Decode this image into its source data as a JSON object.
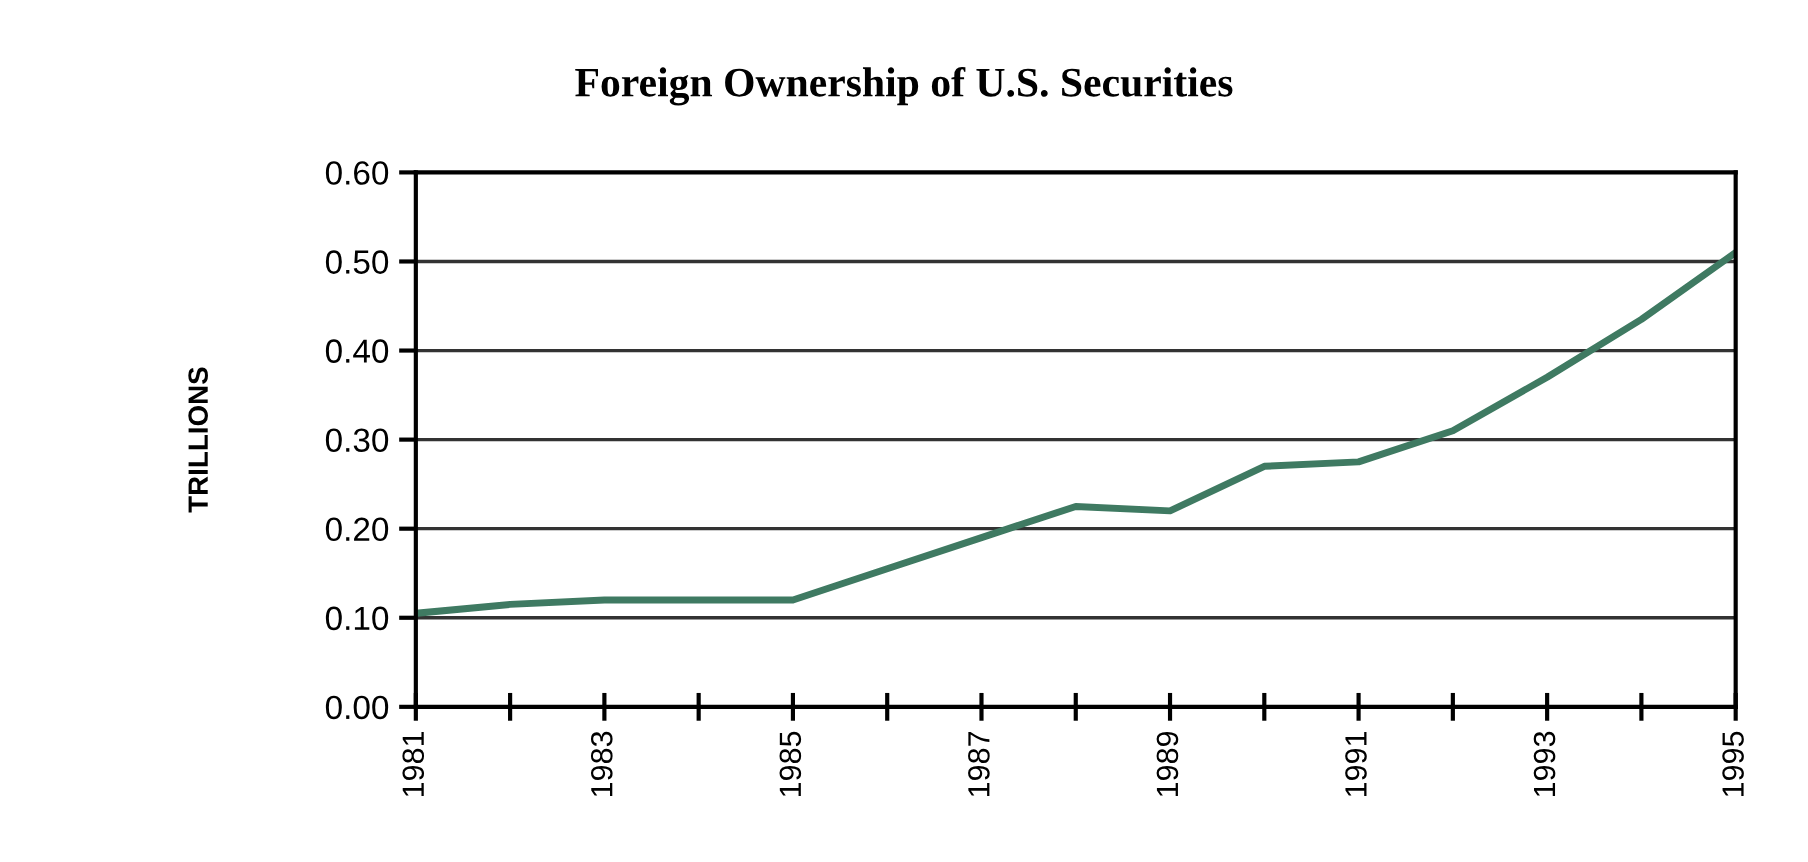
{
  "chart_data": {
    "type": "line",
    "title": "Foreign Ownership of U.S. Securities",
    "ylabel": "TRILLIONS",
    "x": [
      1981,
      1982,
      1983,
      1984,
      1985,
      1986,
      1987,
      1988,
      1989,
      1990,
      1991,
      1992,
      1993,
      1994,
      1995
    ],
    "series": [
      {
        "color": "#3f7a62",
        "values": [
          0.105,
          0.115,
          0.12,
          0.12,
          0.12,
          0.155,
          0.19,
          0.225,
          0.22,
          0.27,
          0.275,
          0.31,
          0.37,
          0.435,
          0.51
        ]
      }
    ],
    "xlim": [
      1981,
      1995
    ],
    "xticks": [
      1981,
      {
        "value": 1982,
        "label": null
      },
      1983,
      {
        "value": 1984,
        "label": null
      },
      1985,
      {
        "value": 1986,
        "label": null
      },
      1987,
      {
        "value": 1988,
        "label": null
      },
      1989,
      {
        "value": 1990,
        "label": null
      },
      1991,
      {
        "value": 1992,
        "label": null
      },
      1993,
      {
        "value": 1994,
        "label": null
      },
      1995
    ],
    "ylim": [
      0,
      0.6
    ],
    "yticks": [
      {
        "value": 0,
        "label": "0.00"
      },
      {
        "value": 0.1,
        "label": "0.10"
      },
      {
        "value": 0.2,
        "label": "0.20"
      },
      {
        "value": 0.3,
        "label": "0.30"
      },
      {
        "value": 0.4,
        "label": "0.40"
      },
      {
        "value": 0.5,
        "label": "0.50"
      },
      {
        "value": 0.6,
        "label": "0.60"
      }
    ],
    "grid": "y",
    "marker": "none",
    "line_style": "solid",
    "legend": false
  }
}
